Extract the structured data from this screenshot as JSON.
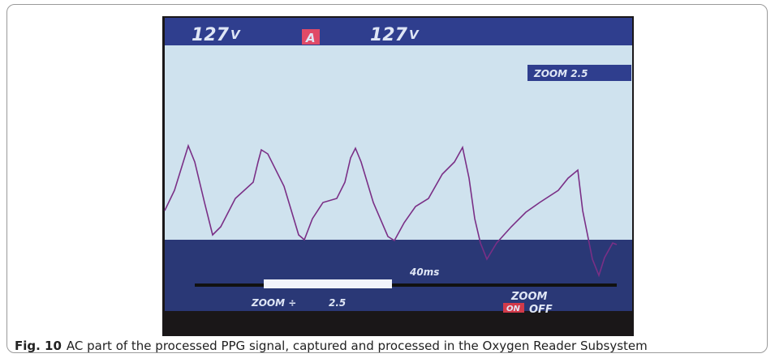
{
  "figure": {
    "screen": {
      "top_left_reading": "127",
      "top_left_unit": "V",
      "channel": "A",
      "top_right_reading": "127",
      "top_right_unit": "V",
      "zoom_indicator": "ZOOM 2.5",
      "timebase": "40ms",
      "zoom_control": "ZOOM ÷",
      "zoom_value": "2.5",
      "zoom_label": "ZOOM",
      "zoom_on": "ON",
      "zoom_off": "OFF"
    },
    "caption": {
      "label": "Fig. 10",
      "text": "AC part of the processed PPG signal, captured and processed in the Oxygen Reader Subsystem"
    }
  }
}
